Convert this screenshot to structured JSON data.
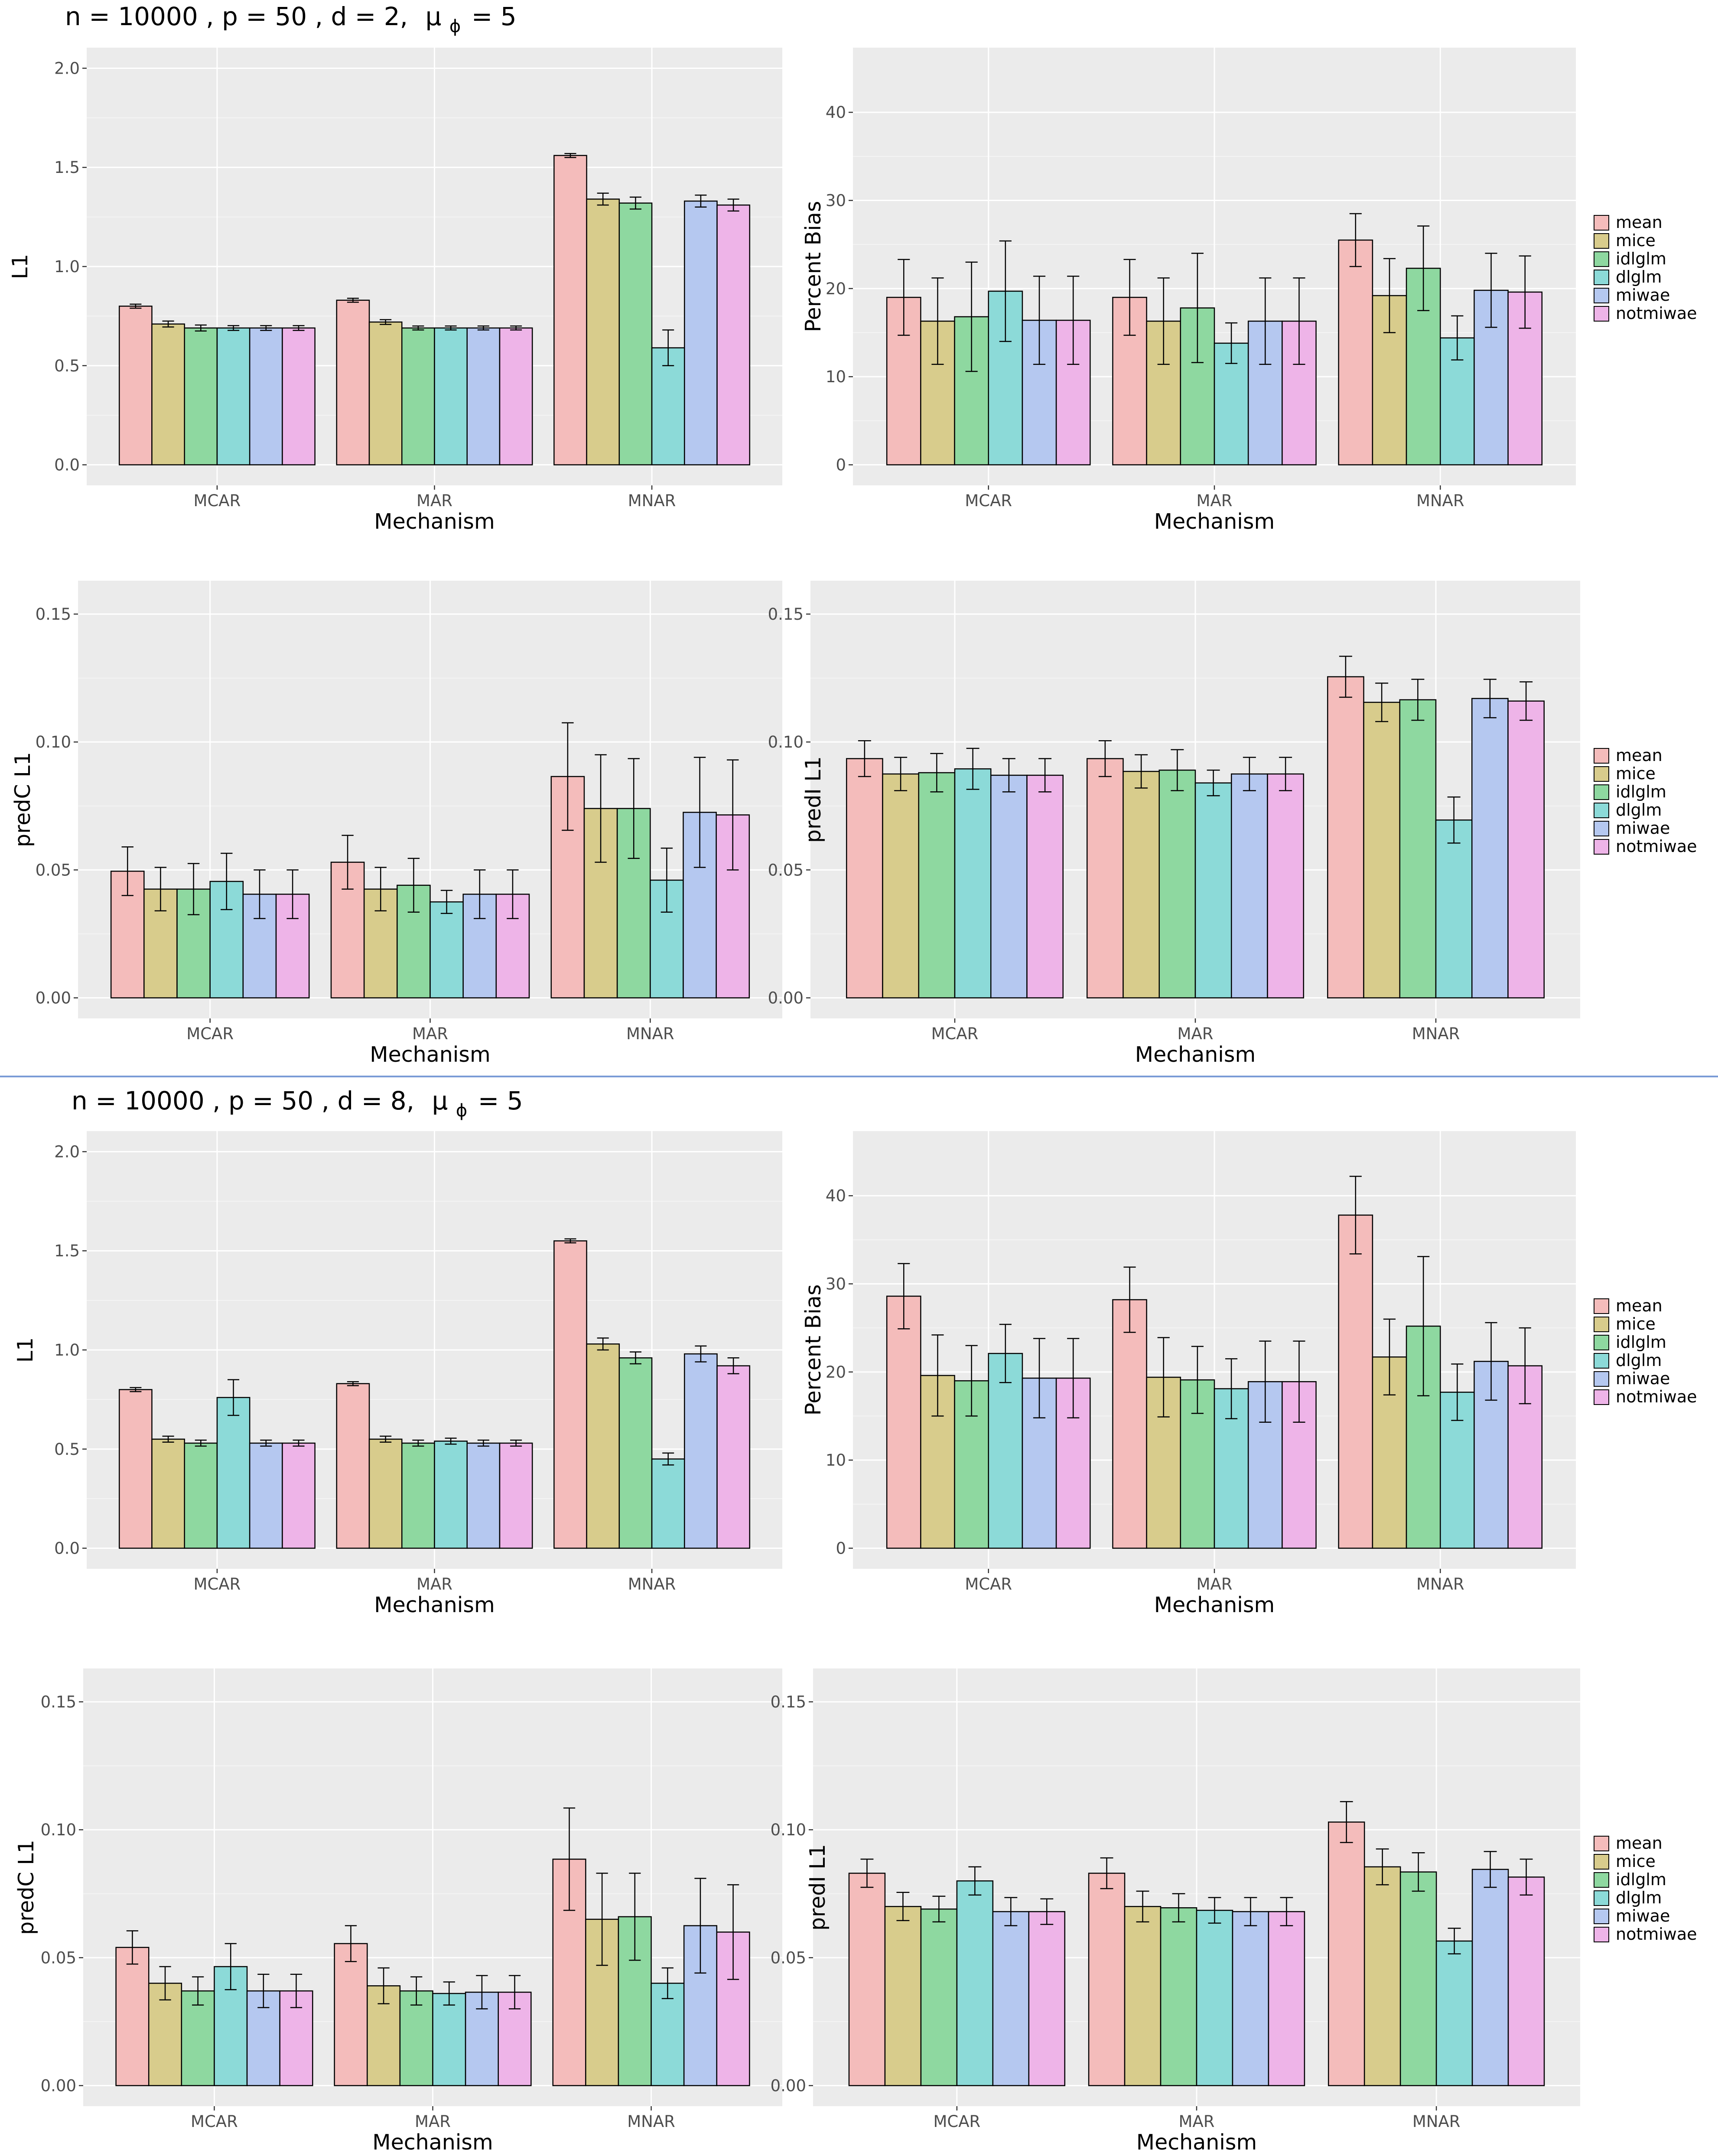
{
  "figure_titles": [
    {
      "text": "n = 10000 , p = 50 , d = 2,",
      "mu_symbol": "μ",
      "mu_subscript": "ϕ",
      "mu_value": "= 5"
    },
    {
      "text": "n = 10000 , p = 50 , d = 8,",
      "mu_symbol": "μ",
      "mu_subscript": "ϕ",
      "mu_value": "= 5"
    }
  ],
  "legend": {
    "entries": [
      "mean",
      "mice",
      "idlglm",
      "dlglm",
      "miwae",
      "notmiwae"
    ],
    "colors": [
      "#F4BCBB",
      "#D8CC8C",
      "#8ED8A0",
      "#8CDAD8",
      "#B5C8F0",
      "#EEB4E8"
    ]
  },
  "colors": {
    "panel_bg": "#EBEBEB",
    "grid_major": "#FFFFFF",
    "bar_border": "#000000",
    "divider": "#7A9BD6"
  },
  "chart_data": [
    {
      "id": "d2-l1",
      "type": "bar",
      "title": "",
      "xlabel": "Mechanism",
      "ylabel": "L1",
      "categories": [
        "MCAR",
        "MAR",
        "MNAR"
      ],
      "ylim": [
        0,
        2.0
      ],
      "yticks": [
        0.0,
        0.5,
        1.0,
        1.5,
        2.0
      ],
      "tick_decimals": 1,
      "series": [
        {
          "name": "mean",
          "values": [
            0.8,
            0.83,
            1.56
          ],
          "errors": [
            0.01,
            0.01,
            0.01
          ]
        },
        {
          "name": "mice",
          "values": [
            0.71,
            0.72,
            1.34
          ],
          "errors": [
            0.015,
            0.012,
            0.03
          ]
        },
        {
          "name": "idlglm",
          "values": [
            0.69,
            0.69,
            1.32
          ],
          "errors": [
            0.015,
            0.01,
            0.03
          ]
        },
        {
          "name": "dlglm",
          "values": [
            0.69,
            0.69,
            0.59
          ],
          "errors": [
            0.012,
            0.01,
            0.09
          ]
        },
        {
          "name": "miwae",
          "values": [
            0.69,
            0.69,
            1.33
          ],
          "errors": [
            0.012,
            0.01,
            0.03
          ]
        },
        {
          "name": "notmiwae",
          "values": [
            0.69,
            0.69,
            1.31
          ],
          "errors": [
            0.012,
            0.01,
            0.03
          ]
        }
      ]
    },
    {
      "id": "d2-bias",
      "type": "bar",
      "title": "",
      "xlabel": "Mechanism",
      "ylabel": "Percent Bias",
      "categories": [
        "MCAR",
        "MAR",
        "MNAR"
      ],
      "ylim": [
        0,
        45
      ],
      "yticks": [
        0,
        10,
        20,
        30,
        40
      ],
      "tick_decimals": 0,
      "series": [
        {
          "name": "mean",
          "values": [
            19.0,
            19.0,
            25.5
          ],
          "errors": [
            4.3,
            4.3,
            3.0
          ]
        },
        {
          "name": "mice",
          "values": [
            16.3,
            16.3,
            19.2
          ],
          "errors": [
            4.9,
            4.9,
            4.2
          ]
        },
        {
          "name": "idlglm",
          "values": [
            16.8,
            17.8,
            22.3
          ],
          "errors": [
            6.2,
            6.2,
            4.8
          ]
        },
        {
          "name": "dlglm",
          "values": [
            19.7,
            13.8,
            14.4
          ],
          "errors": [
            5.7,
            2.3,
            2.5
          ]
        },
        {
          "name": "miwae",
          "values": [
            16.4,
            16.3,
            19.8
          ],
          "errors": [
            5.0,
            4.9,
            4.2
          ]
        },
        {
          "name": "notmiwae",
          "values": [
            16.4,
            16.3,
            19.6
          ],
          "errors": [
            5.0,
            4.9,
            4.1
          ]
        }
      ]
    },
    {
      "id": "d2-predc",
      "type": "bar",
      "title": "",
      "xlabel": "Mechanism",
      "ylabel": "predC L1",
      "categories": [
        "MCAR",
        "MAR",
        "MNAR"
      ],
      "ylim": [
        0,
        0.155
      ],
      "yticks": [
        0.0,
        0.05,
        0.1,
        0.15
      ],
      "tick_decimals": 2,
      "series": [
        {
          "name": "mean",
          "values": [
            0.0495,
            0.053,
            0.0865
          ],
          "errors": [
            0.0095,
            0.0105,
            0.021
          ]
        },
        {
          "name": "mice",
          "values": [
            0.0425,
            0.0425,
            0.074
          ],
          "errors": [
            0.0085,
            0.0085,
            0.021
          ]
        },
        {
          "name": "idlglm",
          "values": [
            0.0425,
            0.044,
            0.074
          ],
          "errors": [
            0.01,
            0.0105,
            0.0195
          ]
        },
        {
          "name": "dlglm",
          "values": [
            0.0455,
            0.0375,
            0.046
          ],
          "errors": [
            0.011,
            0.0045,
            0.0125
          ]
        },
        {
          "name": "miwae",
          "values": [
            0.0405,
            0.0405,
            0.0725
          ],
          "errors": [
            0.0095,
            0.0095,
            0.0215
          ]
        },
        {
          "name": "notmiwae",
          "values": [
            0.0405,
            0.0405,
            0.0715
          ],
          "errors": [
            0.0095,
            0.0095,
            0.0215
          ]
        }
      ]
    },
    {
      "id": "d2-predi",
      "type": "bar",
      "title": "",
      "xlabel": "Mechanism",
      "ylabel": "predI L1",
      "categories": [
        "MCAR",
        "MAR",
        "MNAR"
      ],
      "ylim": [
        0,
        0.155
      ],
      "yticks": [
        0.0,
        0.05,
        0.1,
        0.15
      ],
      "tick_decimals": 2,
      "series": [
        {
          "name": "mean",
          "values": [
            0.0935,
            0.0935,
            0.1255
          ],
          "errors": [
            0.007,
            0.007,
            0.008
          ]
        },
        {
          "name": "mice",
          "values": [
            0.0875,
            0.0885,
            0.1155
          ],
          "errors": [
            0.0065,
            0.0065,
            0.0075
          ]
        },
        {
          "name": "idlglm",
          "values": [
            0.088,
            0.089,
            0.1165
          ],
          "errors": [
            0.0075,
            0.008,
            0.008
          ]
        },
        {
          "name": "dlglm",
          "values": [
            0.0895,
            0.084,
            0.0695
          ],
          "errors": [
            0.008,
            0.005,
            0.009
          ]
        },
        {
          "name": "miwae",
          "values": [
            0.087,
            0.0875,
            0.117
          ],
          "errors": [
            0.0065,
            0.0065,
            0.0075
          ]
        },
        {
          "name": "notmiwae",
          "values": [
            0.087,
            0.0875,
            0.116
          ],
          "errors": [
            0.0065,
            0.0065,
            0.0075
          ]
        }
      ]
    },
    {
      "id": "d8-l1",
      "type": "bar",
      "title": "",
      "xlabel": "Mechanism",
      "ylabel": "L1",
      "categories": [
        "MCAR",
        "MAR",
        "MNAR"
      ],
      "ylim": [
        0,
        2.0
      ],
      "yticks": [
        0.0,
        0.5,
        1.0,
        1.5,
        2.0
      ],
      "tick_decimals": 1,
      "series": [
        {
          "name": "mean",
          "values": [
            0.8,
            0.83,
            1.55
          ],
          "errors": [
            0.01,
            0.01,
            0.01
          ]
        },
        {
          "name": "mice",
          "values": [
            0.55,
            0.55,
            1.03
          ],
          "errors": [
            0.015,
            0.015,
            0.03
          ]
        },
        {
          "name": "idlglm",
          "values": [
            0.53,
            0.53,
            0.96
          ],
          "errors": [
            0.015,
            0.015,
            0.03
          ]
        },
        {
          "name": "dlglm",
          "values": [
            0.76,
            0.54,
            0.45
          ],
          "errors": [
            0.09,
            0.015,
            0.03
          ]
        },
        {
          "name": "miwae",
          "values": [
            0.53,
            0.53,
            0.98
          ],
          "errors": [
            0.015,
            0.015,
            0.04
          ]
        },
        {
          "name": "notmiwae",
          "values": [
            0.53,
            0.53,
            0.92
          ],
          "errors": [
            0.015,
            0.015,
            0.04
          ]
        }
      ]
    },
    {
      "id": "d8-bias",
      "type": "bar",
      "title": "",
      "xlabel": "Mechanism",
      "ylabel": "Percent Bias",
      "categories": [
        "MCAR",
        "MAR",
        "MNAR"
      ],
      "ylim": [
        0,
        45
      ],
      "yticks": [
        0,
        10,
        20,
        30,
        40
      ],
      "tick_decimals": 0,
      "series": [
        {
          "name": "mean",
          "values": [
            28.6,
            28.2,
            37.8
          ],
          "errors": [
            3.7,
            3.7,
            4.4
          ]
        },
        {
          "name": "mice",
          "values": [
            19.6,
            19.4,
            21.7
          ],
          "errors": [
            4.6,
            4.5,
            4.3
          ]
        },
        {
          "name": "idlglm",
          "values": [
            19.0,
            19.1,
            25.2
          ],
          "errors": [
            4.0,
            3.8,
            7.9
          ]
        },
        {
          "name": "dlglm",
          "values": [
            22.1,
            18.1,
            17.7
          ],
          "errors": [
            3.3,
            3.4,
            3.2
          ]
        },
        {
          "name": "miwae",
          "values": [
            19.3,
            18.9,
            21.2
          ],
          "errors": [
            4.5,
            4.6,
            4.4
          ]
        },
        {
          "name": "notmiwae",
          "values": [
            19.3,
            18.9,
            20.7
          ],
          "errors": [
            4.5,
            4.6,
            4.3
          ]
        }
      ]
    },
    {
      "id": "d8-predc",
      "type": "bar",
      "title": "",
      "xlabel": "Mechanism",
      "ylabel": "predC L1",
      "categories": [
        "MCAR",
        "MAR",
        "MNAR"
      ],
      "ylim": [
        0,
        0.155
      ],
      "yticks": [
        0.0,
        0.05,
        0.1,
        0.15
      ],
      "tick_decimals": 2,
      "series": [
        {
          "name": "mean",
          "values": [
            0.054,
            0.0555,
            0.0885
          ],
          "errors": [
            0.0065,
            0.007,
            0.02
          ]
        },
        {
          "name": "mice",
          "values": [
            0.04,
            0.039,
            0.065
          ],
          "errors": [
            0.0065,
            0.007,
            0.018
          ]
        },
        {
          "name": "idlglm",
          "values": [
            0.037,
            0.037,
            0.066
          ],
          "errors": [
            0.0055,
            0.0055,
            0.017
          ]
        },
        {
          "name": "dlglm",
          "values": [
            0.0465,
            0.036,
            0.04
          ],
          "errors": [
            0.009,
            0.0045,
            0.006
          ]
        },
        {
          "name": "miwae",
          "values": [
            0.037,
            0.0365,
            0.0625
          ],
          "errors": [
            0.0065,
            0.0065,
            0.0185
          ]
        },
        {
          "name": "notmiwae",
          "values": [
            0.037,
            0.0365,
            0.06
          ],
          "errors": [
            0.0065,
            0.0065,
            0.0185
          ]
        }
      ]
    },
    {
      "id": "d8-predi",
      "type": "bar",
      "title": "",
      "xlabel": "Mechanism",
      "ylabel": "predI L1",
      "categories": [
        "MCAR",
        "MAR",
        "MNAR"
      ],
      "ylim": [
        0,
        0.155
      ],
      "yticks": [
        0.0,
        0.05,
        0.1,
        0.15
      ],
      "tick_decimals": 2,
      "series": [
        {
          "name": "mean",
          "values": [
            0.083,
            0.083,
            0.103
          ],
          "errors": [
            0.0055,
            0.006,
            0.008
          ]
        },
        {
          "name": "mice",
          "values": [
            0.07,
            0.07,
            0.0855
          ],
          "errors": [
            0.0055,
            0.006,
            0.007
          ]
        },
        {
          "name": "idlglm",
          "values": [
            0.069,
            0.0695,
            0.0835
          ],
          "errors": [
            0.005,
            0.0055,
            0.0075
          ]
        },
        {
          "name": "dlglm",
          "values": [
            0.08,
            0.0685,
            0.0565
          ],
          "errors": [
            0.0055,
            0.005,
            0.005
          ]
        },
        {
          "name": "miwae",
          "values": [
            0.068,
            0.068,
            0.0845
          ],
          "errors": [
            0.0055,
            0.0055,
            0.007
          ]
        },
        {
          "name": "notmiwae",
          "values": [
            0.068,
            0.068,
            0.0815
          ],
          "errors": [
            0.005,
            0.0055,
            0.007
          ]
        }
      ]
    }
  ]
}
